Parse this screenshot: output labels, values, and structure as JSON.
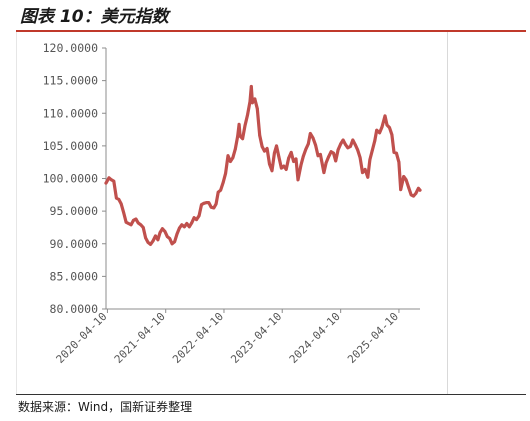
{
  "header": {
    "title": "图表 10：美元指数"
  },
  "footer": {
    "source": "数据来源：Wind，国新证券整理"
  },
  "chart_data": {
    "type": "line",
    "title": "",
    "xlabel": "",
    "ylabel": "",
    "ylim": [
      80,
      120
    ],
    "yticks": [
      "120.0000",
      "115.0000",
      "110.0000",
      "105.0000",
      "100.0000",
      "95.0000",
      "90.0000",
      "85.0000",
      "80.0000"
    ],
    "ytick_values": [
      120,
      115,
      110,
      105,
      100,
      95,
      90,
      85,
      80
    ],
    "xticks": [
      "2020-04-10",
      "2021-04-10",
      "2022-04-10",
      "2023-04-10",
      "2024-04-10",
      "2025-04-10"
    ],
    "xlim": [
      "2020-04-01",
      "2025-08-20"
    ],
    "grid": false,
    "legend": "none",
    "color": "#c0504d",
    "series": [
      {
        "x": [
          "2020-04-01",
          "2020-04-20",
          "2020-05-05",
          "2020-05-20",
          "2020-06-05",
          "2020-06-20",
          "2020-07-05",
          "2020-07-20",
          "2020-08-05",
          "2020-08-20",
          "2020-09-05",
          "2020-09-20",
          "2020-10-05",
          "2020-10-20",
          "2020-11-05",
          "2020-11-20",
          "2020-12-05",
          "2020-12-20",
          "2021-01-05",
          "2021-01-20",
          "2021-02-05",
          "2021-02-20",
          "2021-03-05",
          "2021-03-20",
          "2021-04-05",
          "2021-04-20",
          "2021-05-05",
          "2021-05-20",
          "2021-06-05",
          "2021-06-20",
          "2021-07-05",
          "2021-07-20",
          "2021-08-05",
          "2021-08-20",
          "2021-09-05",
          "2021-09-20",
          "2021-10-05",
          "2021-10-20",
          "2021-11-05",
          "2021-11-20",
          "2021-12-05",
          "2021-12-20",
          "2022-01-05",
          "2022-01-20",
          "2022-02-05",
          "2022-02-20",
          "2022-03-05",
          "2022-03-20",
          "2022-04-05",
          "2022-04-20",
          "2022-05-05",
          "2022-05-20",
          "2022-06-05",
          "2022-06-20",
          "2022-07-05",
          "2022-07-14",
          "2022-07-20",
          "2022-08-05",
          "2022-08-20",
          "2022-09-05",
          "2022-09-20",
          "2022-09-28",
          "2022-10-05",
          "2022-10-20",
          "2022-11-05",
          "2022-11-20",
          "2022-12-05",
          "2022-12-20",
          "2023-01-05",
          "2023-01-20",
          "2023-02-05",
          "2023-02-20",
          "2023-03-05",
          "2023-03-20",
          "2023-04-05",
          "2023-04-20",
          "2023-05-05",
          "2023-05-20",
          "2023-06-05",
          "2023-06-20",
          "2023-07-05",
          "2023-07-18",
          "2023-08-05",
          "2023-08-20",
          "2023-09-05",
          "2023-09-20",
          "2023-10-03",
          "2023-10-20",
          "2023-11-05",
          "2023-11-20",
          "2023-12-05",
          "2023-12-27",
          "2024-01-10",
          "2024-01-25",
          "2024-02-10",
          "2024-02-25",
          "2024-03-10",
          "2024-03-25",
          "2024-04-10",
          "2024-04-25",
          "2024-05-10",
          "2024-05-25",
          "2024-06-10",
          "2024-06-25",
          "2024-07-10",
          "2024-07-25",
          "2024-08-10",
          "2024-08-25",
          "2024-09-10",
          "2024-09-27",
          "2024-10-10",
          "2024-10-25",
          "2024-11-10",
          "2024-11-22",
          "2024-12-10",
          "2024-12-25",
          "2025-01-13",
          "2025-01-25",
          "2025-02-10",
          "2025-02-25",
          "2025-03-10",
          "2025-03-25",
          "2025-04-10",
          "2025-04-21",
          "2025-05-10",
          "2025-05-25",
          "2025-06-10",
          "2025-06-25",
          "2025-07-10",
          "2025-07-25",
          "2025-08-10",
          "2025-08-20"
        ],
        "values": [
          99.3,
          100.1,
          99.8,
          99.6,
          97.0,
          96.8,
          96.1,
          94.8,
          93.3,
          93.1,
          92.9,
          93.6,
          93.8,
          93.2,
          92.9,
          92.5,
          90.9,
          90.2,
          89.9,
          90.4,
          91.2,
          90.6,
          91.7,
          92.3,
          91.9,
          91.1,
          90.8,
          90.0,
          90.3,
          91.5,
          92.4,
          92.9,
          92.6,
          93.1,
          92.6,
          93.2,
          94.0,
          93.7,
          94.3,
          96.0,
          96.2,
          96.3,
          96.3,
          95.6,
          95.5,
          96.1,
          97.9,
          98.2,
          99.4,
          100.8,
          103.5,
          102.6,
          103.2,
          104.5,
          106.5,
          108.3,
          106.5,
          106.1,
          108.1,
          109.8,
          111.8,
          114.1,
          111.6,
          112.2,
          110.7,
          106.6,
          104.9,
          104.2,
          104.6,
          102.2,
          101.2,
          103.9,
          105.0,
          103.3,
          101.6,
          101.9,
          101.4,
          103.1,
          104.0,
          102.6,
          103.0,
          99.8,
          102.0,
          103.4,
          104.5,
          105.3,
          106.9,
          106.2,
          105.1,
          103.5,
          103.7,
          100.9,
          102.4,
          103.3,
          104.1,
          103.9,
          102.7,
          104.4,
          105.3,
          105.9,
          105.2,
          104.7,
          104.9,
          105.9,
          105.2,
          104.4,
          103.2,
          100.9,
          101.4,
          100.2,
          102.9,
          104.3,
          105.8,
          107.4,
          107.0,
          107.9,
          109.6,
          108.2,
          107.8,
          106.7,
          104.0,
          103.9,
          102.5,
          98.3,
          100.3,
          99.8,
          98.6,
          97.5,
          97.3,
          97.7,
          98.5,
          98.2
        ]
      }
    ]
  }
}
